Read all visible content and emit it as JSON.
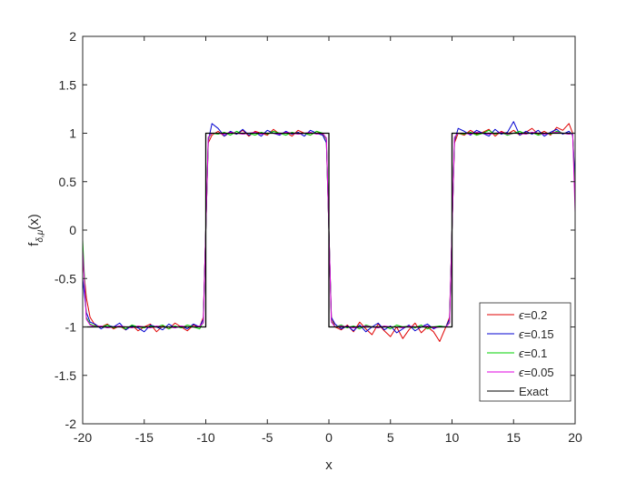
{
  "chart_data": {
    "type": "line",
    "xlabel": "x",
    "ylabel": "f",
    "ylabel_subscript": "δ,μ",
    "ylabel_suffix": "(x)",
    "xlim": [
      -20,
      20
    ],
    "ylim": [
      -2,
      2
    ],
    "xticks": [
      -20,
      -15,
      -10,
      -5,
      0,
      5,
      10,
      15,
      20
    ],
    "yticks": [
      -2,
      -1.5,
      -1,
      -0.5,
      0,
      0.5,
      1,
      1.5,
      2
    ],
    "xtick_labels": [
      "-20",
      "-15",
      "-10",
      "-5",
      "0",
      "5",
      "10",
      "15",
      "20"
    ],
    "ytick_labels": [
      "-2",
      "-1.5",
      "-1",
      "-0.5",
      "0",
      "0.5",
      "1",
      "1.5",
      "2"
    ],
    "grid": false,
    "legend_position": "bottom-right",
    "series": [
      {
        "name": "ϵ=0.2",
        "legend_symbol": "ϵ",
        "legend_value": "=0.2",
        "color": "#e00000",
        "x": [
          -20,
          -19.7,
          -19.4,
          -19,
          -18.5,
          -18,
          -17.5,
          -17,
          -16.5,
          -16,
          -15.5,
          -15,
          -14.5,
          -14,
          -13.5,
          -13,
          -12.5,
          -12,
          -11.5,
          -11,
          -10.5,
          -10.2,
          -10,
          -9.8,
          -9.5,
          -9,
          -8.5,
          -8,
          -7.5,
          -7,
          -6.5,
          -6,
          -5.5,
          -5,
          -4.5,
          -4,
          -3.5,
          -3,
          -2.5,
          -2,
          -1.5,
          -1,
          -0.5,
          -0.2,
          0,
          0.2,
          0.5,
          1,
          1.5,
          2,
          2.5,
          3,
          3.5,
          4,
          4.5,
          5,
          5.5,
          6,
          6.5,
          7,
          7.5,
          8,
          8.5,
          9,
          9.5,
          9.8,
          10,
          10.2,
          10.5,
          11,
          11.5,
          12,
          12.5,
          13,
          13.5,
          14,
          14.5,
          15,
          15.5,
          16,
          16.5,
          17,
          17.5,
          18,
          18.5,
          19,
          19.5,
          19.8,
          20
        ],
        "y": [
          -0.3,
          -0.7,
          -0.9,
          -0.98,
          -1.0,
          -0.97,
          -1.02,
          -0.99,
          -1.03,
          -0.98,
          -1.04,
          -1.0,
          -0.97,
          -1.05,
          -0.99,
          -1.02,
          -0.96,
          -1.0,
          -1.04,
          -0.98,
          -1.0,
          -0.9,
          0.0,
          0.9,
          0.98,
          1.02,
          0.97,
          1.01,
          0.99,
          1.03,
          0.97,
          1.02,
          1.0,
          0.98,
          1.04,
          0.99,
          1.01,
          0.97,
          1.03,
          1.0,
          0.98,
          1.02,
          0.99,
          0.9,
          0.0,
          -0.9,
          -1.0,
          -1.03,
          -0.98,
          -1.05,
          -0.95,
          -1.02,
          -1.08,
          -0.97,
          -1.04,
          -1.1,
          -1.0,
          -1.12,
          -1.03,
          -0.96,
          -1.06,
          -1.0,
          -1.05,
          -1.15,
          -1.0,
          -0.9,
          0.0,
          0.9,
          1.0,
          0.98,
          1.03,
          0.99,
          1.01,
          1.04,
          0.97,
          1.02,
          0.99,
          1.03,
          0.98,
          1.01,
          1.05,
          0.99,
          1.02,
          0.98,
          1.06,
          1.03,
          1.1,
          1.0,
          0.4
        ]
      },
      {
        "name": "ϵ=0.15",
        "legend_symbol": "ϵ",
        "legend_value": "=0.15",
        "color": "#0000d0",
        "x": [
          -20,
          -19.7,
          -19.4,
          -19,
          -18.5,
          -18,
          -17.5,
          -17,
          -16.5,
          -16,
          -15.5,
          -15,
          -14.5,
          -14,
          -13.5,
          -13,
          -12.5,
          -12,
          -11.5,
          -11,
          -10.5,
          -10.2,
          -10,
          -9.8,
          -9.5,
          -9,
          -8.5,
          -8,
          -7.5,
          -7,
          -6.5,
          -6,
          -5.5,
          -5,
          -4.5,
          -4,
          -3.5,
          -3,
          -2.5,
          -2,
          -1.5,
          -1,
          -0.5,
          -0.2,
          0,
          0.2,
          0.5,
          1,
          1.5,
          2,
          2.5,
          3,
          3.5,
          4,
          4.5,
          5,
          5.5,
          6,
          6.5,
          7,
          7.5,
          8,
          8.5,
          9,
          9.5,
          9.8,
          10,
          10.2,
          10.5,
          11,
          11.5,
          12,
          12.5,
          13,
          13.5,
          14,
          14.5,
          15,
          15.5,
          16,
          16.5,
          17,
          17.5,
          18,
          18.5,
          19,
          19.5,
          19.8,
          20
        ],
        "y": [
          -0.5,
          -0.85,
          -0.95,
          -0.97,
          -1.02,
          -0.98,
          -1.0,
          -0.96,
          -1.03,
          -0.99,
          -1.01,
          -1.05,
          -0.98,
          -1.0,
          -1.03,
          -0.97,
          -1.01,
          -0.99,
          -1.02,
          -0.97,
          -1.0,
          -0.92,
          0.0,
          0.92,
          1.1,
          1.05,
          0.97,
          1.02,
          0.99,
          1.04,
          0.98,
          1.01,
          0.97,
          1.03,
          1.0,
          0.98,
          1.02,
          0.99,
          1.01,
          0.97,
          1.03,
          1.0,
          0.98,
          0.9,
          0.0,
          -0.9,
          -0.97,
          -1.02,
          -0.99,
          -1.04,
          -0.98,
          -1.05,
          -1.0,
          -0.96,
          -1.03,
          -0.99,
          -1.06,
          -1.02,
          -0.98,
          -1.04,
          -1.0,
          -0.97,
          -1.02,
          -0.99,
          -1.0,
          -0.92,
          0.0,
          0.92,
          1.05,
          1.02,
          0.98,
          1.03,
          1.0,
          0.97,
          1.04,
          0.99,
          1.01,
          1.12,
          0.98,
          1.02,
          0.99,
          1.03,
          0.97,
          1.01,
          1.04,
          0.99,
          1.02,
          0.98,
          0.5
        ]
      },
      {
        "name": "ϵ=0.1",
        "legend_symbol": "ϵ",
        "legend_value": "=0.1",
        "color": "#00d000",
        "x": [
          -20,
          -19.7,
          -19.4,
          -19,
          -18.5,
          -18,
          -17.5,
          -17,
          -16.5,
          -16,
          -15.5,
          -15,
          -14.5,
          -14,
          -13.5,
          -13,
          -12.5,
          -12,
          -11.5,
          -11,
          -10.5,
          -10.2,
          -10,
          -9.8,
          -9.5,
          -9,
          -8.5,
          -8,
          -7.5,
          -7,
          -6.5,
          -6,
          -5.5,
          -5,
          -4.5,
          -4,
          -3.5,
          -3,
          -2.5,
          -2,
          -1.5,
          -1,
          -0.5,
          -0.2,
          0,
          0.2,
          0.5,
          1,
          1.5,
          2,
          2.5,
          3,
          3.5,
          4,
          4.5,
          5,
          5.5,
          6,
          6.5,
          7,
          7.5,
          8,
          8.5,
          9,
          9.5,
          9.8,
          10,
          10.2,
          10.5,
          11,
          11.5,
          12,
          12.5,
          13,
          13.5,
          14,
          14.5,
          15,
          15.5,
          16,
          16.5,
          17,
          17.5,
          18,
          18.5,
          19,
          19.5,
          19.8,
          20
        ],
        "y": [
          -0.1,
          -0.9,
          -0.97,
          -0.99,
          -1.0,
          -0.98,
          -1.01,
          -0.99,
          -1.02,
          -0.98,
          -1.0,
          -1.01,
          -0.99,
          -1.0,
          -0.98,
          -1.02,
          -0.99,
          -1.01,
          -0.98,
          -1.0,
          -1.02,
          -0.95,
          0.0,
          0.95,
          1.0,
          0.99,
          1.01,
          0.98,
          1.02,
          0.99,
          1.0,
          0.98,
          1.01,
          0.99,
          1.02,
          1.0,
          0.98,
          1.01,
          0.99,
          1.0,
          0.98,
          1.02,
          1.0,
          0.94,
          0.0,
          -0.94,
          -1.0,
          -0.98,
          -1.01,
          -0.99,
          -1.02,
          -0.98,
          -1.0,
          -1.01,
          -0.99,
          -1.02,
          -0.98,
          -1.0,
          -0.99,
          -1.01,
          -0.98,
          -1.02,
          -1.0,
          -0.99,
          -1.0,
          -0.95,
          0.0,
          0.95,
          1.0,
          0.99,
          1.01,
          0.98,
          1.0,
          1.03,
          0.99,
          1.01,
          0.98,
          1.0,
          1.02,
          0.99,
          1.01,
          0.98,
          1.0,
          0.99,
          1.02,
          1.0,
          0.99,
          1.0,
          0.3
        ]
      },
      {
        "name": "ϵ=0.05",
        "legend_symbol": "ϵ",
        "legend_value": "=0.05",
        "color": "#e000e0",
        "x": [
          -20,
          -19.7,
          -19.4,
          -19,
          -18.5,
          -18,
          -17.5,
          -17,
          -16.5,
          -16,
          -15.5,
          -15,
          -14.5,
          -14,
          -13.5,
          -13,
          -12.5,
          -12,
          -11.5,
          -11,
          -10.5,
          -10.2,
          -10,
          -9.8,
          -9.5,
          -9,
          -8.5,
          -8,
          -7.5,
          -7,
          -6.5,
          -6,
          -5.5,
          -5,
          -4.5,
          -4,
          -3.5,
          -3,
          -2.5,
          -2,
          -1.5,
          -1,
          -0.5,
          -0.2,
          0,
          0.2,
          0.5,
          1,
          1.5,
          2,
          2.5,
          3,
          3.5,
          4,
          4.5,
          5,
          5.5,
          6,
          6.5,
          7,
          7.5,
          8,
          8.5,
          9,
          9.5,
          9.8,
          10,
          10.2,
          10.5,
          11,
          11.5,
          12,
          12.5,
          13,
          13.5,
          14,
          14.5,
          15,
          15.5,
          16,
          16.5,
          17,
          17.5,
          18,
          18.5,
          19,
          19.5,
          19.8,
          20
        ],
        "y": [
          -0.2,
          -0.92,
          -0.98,
          -1.0,
          -0.99,
          -1.01,
          -1.0,
          -0.99,
          -1.0,
          -1.01,
          -0.99,
          -1.0,
          -1.01,
          -0.99,
          -1.0,
          -1.0,
          -1.01,
          -0.99,
          -1.0,
          -1.0,
          -0.99,
          -0.96,
          0.0,
          0.96,
          1.0,
          1.0,
          0.99,
          1.01,
          1.0,
          0.99,
          1.0,
          1.01,
          0.99,
          1.0,
          1.0,
          0.99,
          1.01,
          1.0,
          0.99,
          1.0,
          1.01,
          0.99,
          1.0,
          0.95,
          0.0,
          -0.95,
          -1.0,
          -0.99,
          -1.0,
          -1.01,
          -1.0,
          -0.99,
          -1.0,
          -1.01,
          -0.99,
          -1.0,
          -1.0,
          -1.01,
          -0.99,
          -1.0,
          -1.0,
          -0.99,
          -1.01,
          -1.0,
          -1.0,
          -0.96,
          0.0,
          0.96,
          1.0,
          1.0,
          0.99,
          1.01,
          1.0,
          0.99,
          1.0,
          1.01,
          0.99,
          1.0,
          1.0,
          0.99,
          1.01,
          1.0,
          0.99,
          1.0,
          1.01,
          1.0,
          0.99,
          1.0,
          0.18
        ]
      },
      {
        "name": "Exact",
        "legend_symbol": "",
        "legend_value": "Exact",
        "color": "#000000",
        "x": [
          -20,
          -10,
          -10,
          0,
          0,
          10,
          10,
          20
        ],
        "y": [
          -1,
          -1,
          1,
          1,
          -1,
          -1,
          1,
          1
        ]
      }
    ]
  }
}
